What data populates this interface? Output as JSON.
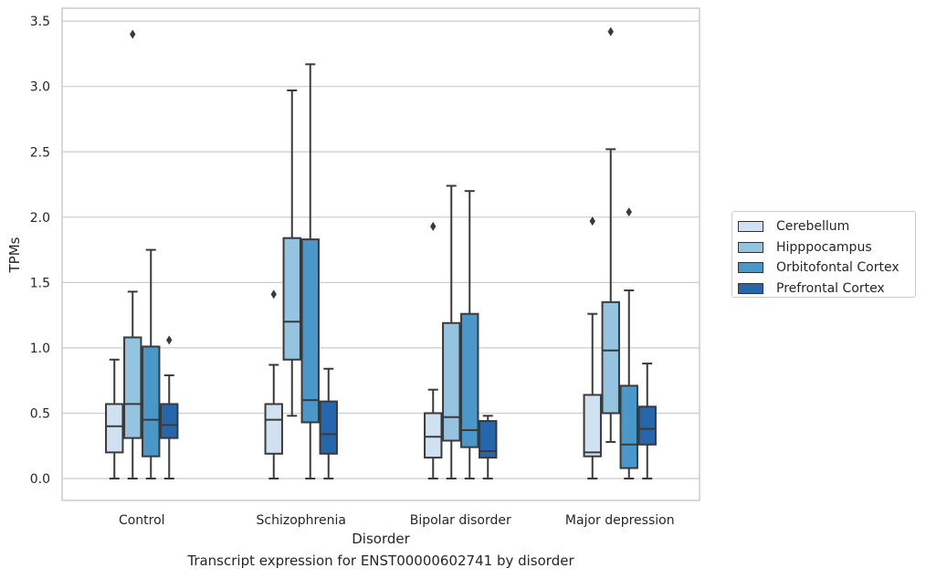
{
  "chart_data": {
    "type": "box",
    "title": "",
    "caption": "Transcript expression for ENST00000602741 by disorder",
    "xlabel": "Disorder",
    "ylabel": "TPMs",
    "ylim": [
      -0.16,
      3.61
    ],
    "yticks": [
      "0.0",
      "0.5",
      "1.0",
      "1.5",
      "2.0",
      "2.5",
      "3.0",
      "3.5"
    ],
    "categories": [
      "Control",
      "Schizophrenia",
      "Bipolar disorder",
      "Major depression"
    ],
    "grid": "horizontal",
    "legend_position": "right",
    "series": [
      {
        "name": "Cerebellum",
        "color": "#d0e1f2",
        "boxes": [
          {
            "whislo": 0.0,
            "q1": 0.2,
            "med": 0.4,
            "q3": 0.57,
            "whishi": 0.91,
            "fliers": []
          },
          {
            "whislo": 0.0,
            "q1": 0.19,
            "med": 0.45,
            "q3": 0.57,
            "whishi": 0.87,
            "fliers": [
              1.41
            ]
          },
          {
            "whislo": 0.0,
            "q1": 0.16,
            "med": 0.32,
            "q3": 0.5,
            "whishi": 0.68,
            "fliers": [
              1.93
            ]
          },
          {
            "whislo": 0.0,
            "q1": 0.17,
            "med": 0.2,
            "q3": 0.64,
            "whishi": 1.26,
            "fliers": [
              1.97
            ]
          }
        ]
      },
      {
        "name": "Hipppocampus",
        "color": "#94c4df",
        "boxes": [
          {
            "whislo": 0.0,
            "q1": 0.31,
            "med": 0.57,
            "q3": 1.08,
            "whishi": 1.43,
            "fliers": [
              3.4
            ]
          },
          {
            "whislo": 0.48,
            "q1": 0.91,
            "med": 1.2,
            "q3": 1.84,
            "whishi": 2.97,
            "fliers": []
          },
          {
            "whislo": 0.0,
            "q1": 0.29,
            "med": 0.47,
            "q3": 1.19,
            "whishi": 2.24,
            "fliers": []
          },
          {
            "whislo": 0.28,
            "q1": 0.5,
            "med": 0.98,
            "q3": 1.35,
            "whishi": 2.52,
            "fliers": [
              3.42
            ]
          }
        ]
      },
      {
        "name": "Orbitofontal Cortex",
        "color": "#4a98c9",
        "boxes": [
          {
            "whislo": 0.0,
            "q1": 0.17,
            "med": 0.45,
            "q3": 1.01,
            "whishi": 1.75,
            "fliers": []
          },
          {
            "whislo": 0.0,
            "q1": 0.43,
            "med": 0.6,
            "q3": 1.83,
            "whishi": 3.17,
            "fliers": []
          },
          {
            "whislo": 0.0,
            "q1": 0.24,
            "med": 0.37,
            "q3": 1.26,
            "whishi": 2.2,
            "fliers": []
          },
          {
            "whislo": 0.0,
            "q1": 0.08,
            "med": 0.26,
            "q3": 0.71,
            "whishi": 1.44,
            "fliers": [
              2.04
            ]
          }
        ]
      },
      {
        "name": "Prefrontal Cortex",
        "color": "#2566ad",
        "boxes": [
          {
            "whislo": 0.0,
            "q1": 0.31,
            "med": 0.41,
            "q3": 0.57,
            "whishi": 0.79,
            "fliers": [
              1.06
            ]
          },
          {
            "whislo": 0.0,
            "q1": 0.19,
            "med": 0.34,
            "q3": 0.59,
            "whishi": 0.84,
            "fliers": []
          },
          {
            "whislo": 0.0,
            "q1": 0.16,
            "med": 0.21,
            "q3": 0.44,
            "whishi": 0.48,
            "fliers": []
          },
          {
            "whislo": 0.0,
            "q1": 0.26,
            "med": 0.38,
            "q3": 0.55,
            "whishi": 0.88,
            "fliers": []
          }
        ]
      }
    ]
  }
}
